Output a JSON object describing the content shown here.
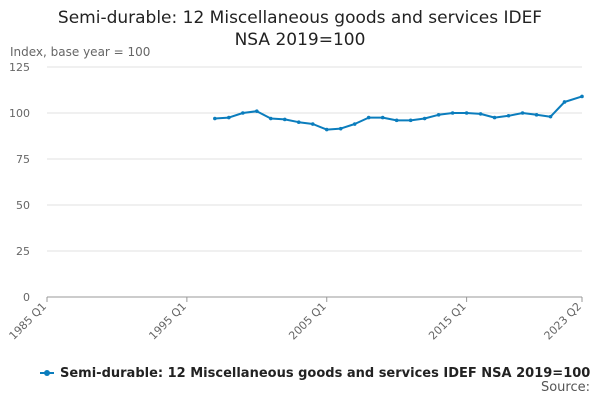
{
  "chart_data": {
    "type": "line",
    "title_line1": "Semi-durable: 12 Miscellaneous goods and services IDEF",
    "title_line2": "NSA 2019=100",
    "ylabel": "Index, base year = 100",
    "source": "Source:",
    "ylim": [
      0,
      125
    ],
    "yticks": [
      0,
      25,
      50,
      75,
      100,
      125
    ],
    "xrange": [
      "1985 Q1",
      "2023 Q2"
    ],
    "xticks": [
      "1985 Q1",
      "1995 Q1",
      "2005 Q1",
      "2015 Q1",
      "2023 Q2"
    ],
    "grid": true,
    "legend_position": "bottom",
    "series": [
      {
        "name": "Semi-durable: 12 Miscellaneous goods and services IDEF NSA 2019=100",
        "color": "#0b7dbd",
        "x": [
          "1997 Q1",
          "1998 Q1",
          "1999 Q1",
          "2000 Q1",
          "2001 Q1",
          "2002 Q1",
          "2003 Q1",
          "2004 Q1",
          "2005 Q1",
          "2006 Q1",
          "2007 Q1",
          "2008 Q1",
          "2009 Q1",
          "2010 Q1",
          "2011 Q1",
          "2012 Q1",
          "2013 Q1",
          "2014 Q1",
          "2015 Q1",
          "2016 Q1",
          "2017 Q1",
          "2018 Q1",
          "2019 Q1",
          "2020 Q1",
          "2021 Q1",
          "2022 Q1",
          "2023 Q2"
        ],
        "values": [
          97,
          97.5,
          100,
          101,
          97,
          96.5,
          95,
          94,
          91,
          91.5,
          94,
          97.5,
          97.5,
          96,
          96,
          97,
          99,
          100,
          100,
          99.5,
          97.5,
          98.5,
          100,
          99,
          98,
          106,
          109
        ]
      }
    ]
  }
}
